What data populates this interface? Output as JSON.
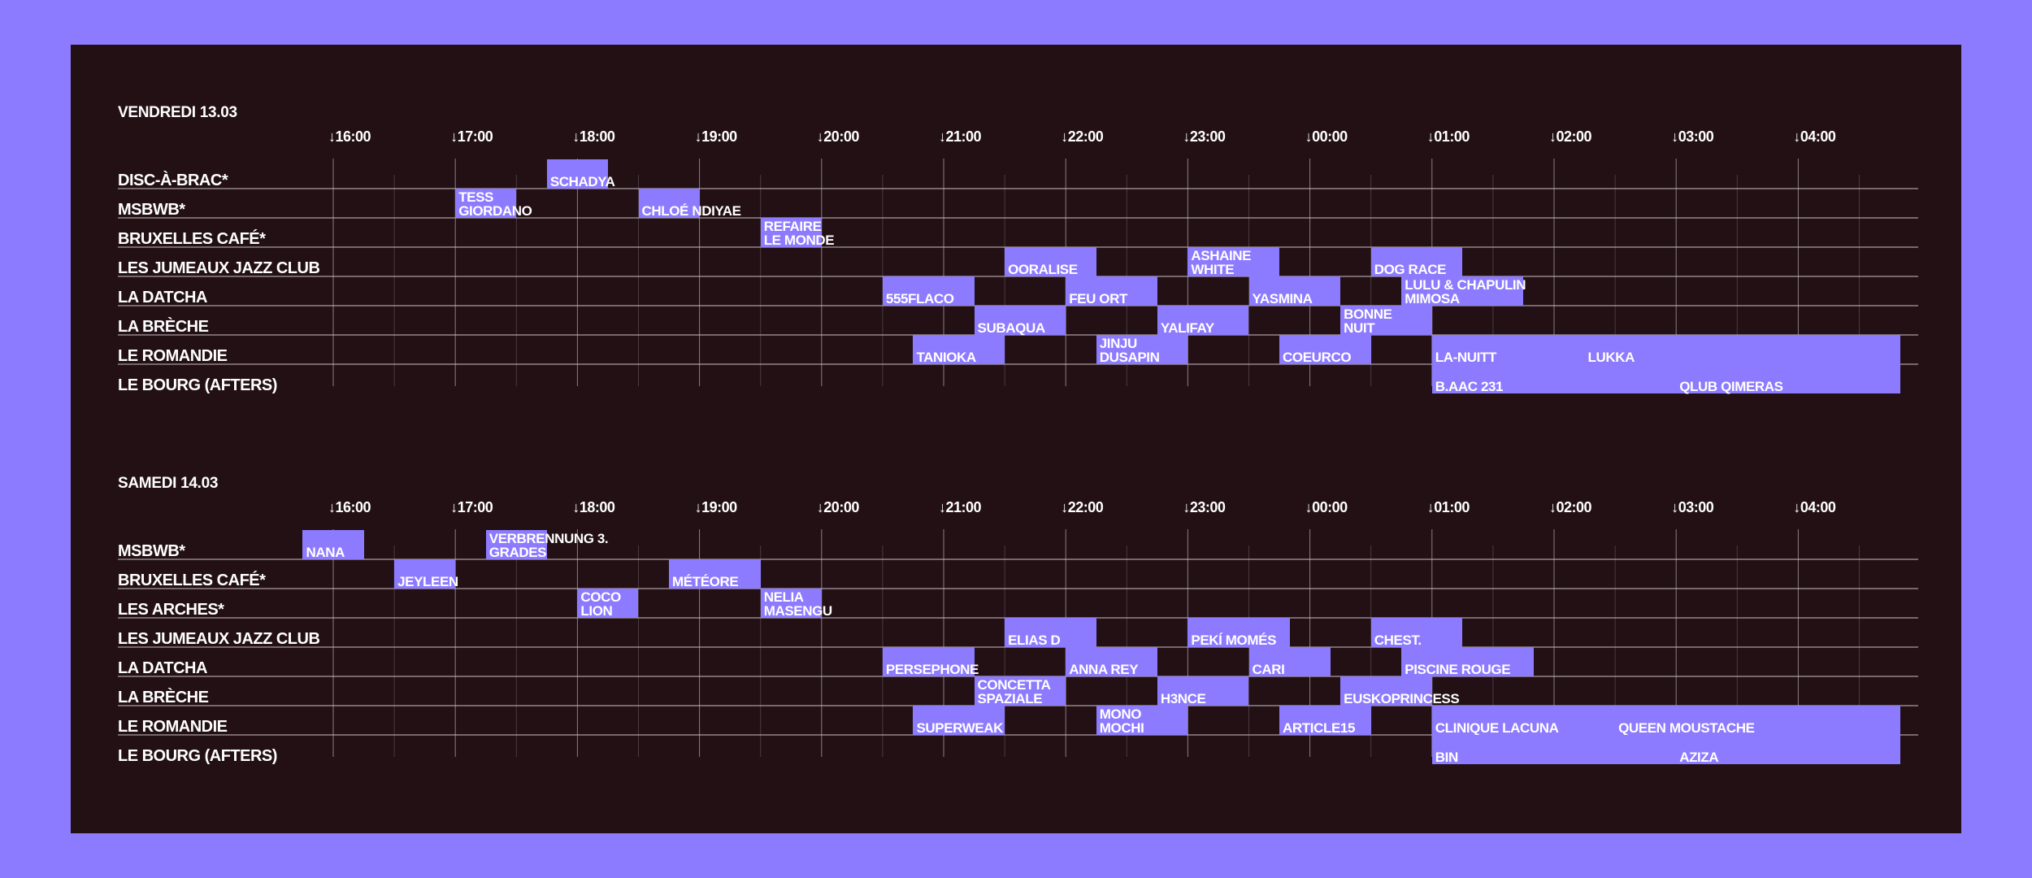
{
  "colors": {
    "frame": "#8d7bff",
    "panel": "#221015",
    "block": "#8d7bff",
    "text": "#ffffff",
    "gridline": "#8a7e84"
  },
  "ticks": [
    "↓16:00",
    "↓17:00",
    "↓18:00",
    "↓19:00",
    "↓20:00",
    "↓21:00",
    "↓22:00",
    "↓23:00",
    "↓00:00",
    "↓01:00",
    "↓02:00",
    "↓03:00",
    "↓04:00"
  ],
  "days": [
    {
      "title": "VENDREDI 13.03",
      "rows": [
        {
          "label": "DISC-À-BRAC*",
          "sets": [
            {
              "artist": "SCHADYA",
              "start": "17:45",
              "end": "18:15"
            }
          ]
        },
        {
          "label": "MSBWB*",
          "sets": [
            {
              "artist": "TESS\nGIORDANO",
              "start": "17:00",
              "end": "17:30"
            },
            {
              "artist": "CHLOÉ NDIYAE",
              "start": "18:30",
              "end": "19:00"
            }
          ]
        },
        {
          "label": "BRUXELLES CAFÉ*",
          "sets": [
            {
              "artist": "REFAIRE\nLE MONDE",
              "start": "19:30",
              "end": "20:00"
            }
          ]
        },
        {
          "label": "LES JUMEAUX JAZZ CLUB",
          "sets": [
            {
              "artist": "OORALISE",
              "start": "21:30",
              "end": "22:15"
            },
            {
              "artist": "ASHAINE\nWHITE",
              "start": "23:00",
              "end": "23:45"
            },
            {
              "artist": "DOG RACE",
              "start": "00:30",
              "end": "01:15"
            }
          ]
        },
        {
          "label": "LA DATCHA",
          "sets": [
            {
              "artist": "555FLACO",
              "start": "20:30",
              "end": "21:15"
            },
            {
              "artist": "FEU ORT",
              "start": "22:00",
              "end": "22:45"
            },
            {
              "artist": "YASMINA",
              "start": "23:30",
              "end": "00:15"
            },
            {
              "artist": "LULU & CHAPULIN\nMIMOSA",
              "start": "00:45",
              "end": "01:45"
            }
          ]
        },
        {
          "label": "LA BRÈCHE",
          "sets": [
            {
              "artist": "SUBAQUA",
              "start": "21:15",
              "end": "22:00"
            },
            {
              "artist": "YALIFAY",
              "start": "22:45",
              "end": "23:30"
            },
            {
              "artist": "BONNE\nNUIT",
              "start": "00:15",
              "end": "01:00"
            }
          ]
        },
        {
          "label": "LE ROMANDIE",
          "sets": [
            {
              "artist": "TANIOKA",
              "start": "20:45",
              "end": "21:30"
            },
            {
              "artist": "JINJU\nDUSAPIN",
              "start": "22:15",
              "end": "23:00"
            },
            {
              "artist": "COEURCO",
              "start": "23:45",
              "end": "00:30"
            },
            {
              "artist": "LA-NUITT",
              "start": "01:00",
              "end": "02:15"
            },
            {
              "artist": "LUKKA",
              "start": "02:15",
              "end": "04:50"
            }
          ]
        },
        {
          "label": "LE BOURG (AFTERS)",
          "sets": [
            {
              "artist": "B.AAC 231",
              "start": "01:00",
              "end": "03:00"
            },
            {
              "artist": "QLUB QIMERAS",
              "start": "03:00",
              "end": "04:50"
            }
          ]
        }
      ]
    },
    {
      "title": "SAMEDI 14.03",
      "rows": [
        {
          "label": "MSBWB*",
          "sets": [
            {
              "artist": "NANA",
              "start": "15:45",
              "end": "16:15"
            },
            {
              "artist": "VERBRENNUNG 3.\nGRADES",
              "start": "17:15",
              "end": "17:45"
            }
          ]
        },
        {
          "label": "BRUXELLES CAFÉ*",
          "sets": [
            {
              "artist": "JEYLEEN",
              "start": "16:30",
              "end": "17:00"
            },
            {
              "artist": "MÉTÉORE",
              "start": "18:45",
              "end": "19:30"
            }
          ]
        },
        {
          "label": "LES ARCHES*",
          "sets": [
            {
              "artist": "COCO\nLION",
              "start": "18:00",
              "end": "18:30"
            },
            {
              "artist": "NELIA\nMASENGU",
              "start": "19:30",
              "end": "20:00"
            }
          ]
        },
        {
          "label": "LES JUMEAUX JAZZ CLUB",
          "sets": [
            {
              "artist": "ELIAS D",
              "start": "21:30",
              "end": "22:15"
            },
            {
              "artist": "PEKÍ MOMÉS",
              "start": "23:00",
              "end": "23:50"
            },
            {
              "artist": "CHEST.",
              "start": "00:30",
              "end": "01:15"
            }
          ]
        },
        {
          "label": "LA DATCHA",
          "sets": [
            {
              "artist": "PERSEPHONE",
              "start": "20:30",
              "end": "21:15"
            },
            {
              "artist": "ANNA REY",
              "start": "22:00",
              "end": "22:45"
            },
            {
              "artist": "CARI",
              "start": "23:30",
              "end": "00:10"
            },
            {
              "artist": "PISCINE ROUGE",
              "start": "00:45",
              "end": "01:50"
            }
          ]
        },
        {
          "label": "LA BRÈCHE",
          "sets": [
            {
              "artist": "CONCETTA\nSPAZIALE",
              "start": "21:15",
              "end": "22:00"
            },
            {
              "artist": "H3NCE",
              "start": "22:45",
              "end": "23:30"
            },
            {
              "artist": "EUSKOPRINCESS",
              "start": "00:15",
              "end": "01:00"
            }
          ]
        },
        {
          "label": "LE ROMANDIE",
          "sets": [
            {
              "artist": "SUPERWEAK",
              "start": "20:45",
              "end": "21:30"
            },
            {
              "artist": "MONO\nMOCHI",
              "start": "22:15",
              "end": "23:00"
            },
            {
              "artist": "ARTICLE15",
              "start": "23:45",
              "end": "00:30"
            },
            {
              "artist": "CLINIQUE LACUNA",
              "start": "01:00",
              "end": "02:30"
            },
            {
              "artist": "QUEEN MOUSTACHE",
              "start": "02:30",
              "end": "04:50"
            }
          ]
        },
        {
          "label": "LE BOURG (AFTERS)",
          "sets": [
            {
              "artist": "BIN",
              "start": "01:00",
              "end": "03:00"
            },
            {
              "artist": "AZIZA",
              "start": "03:00",
              "end": "04:50"
            }
          ]
        }
      ]
    }
  ]
}
